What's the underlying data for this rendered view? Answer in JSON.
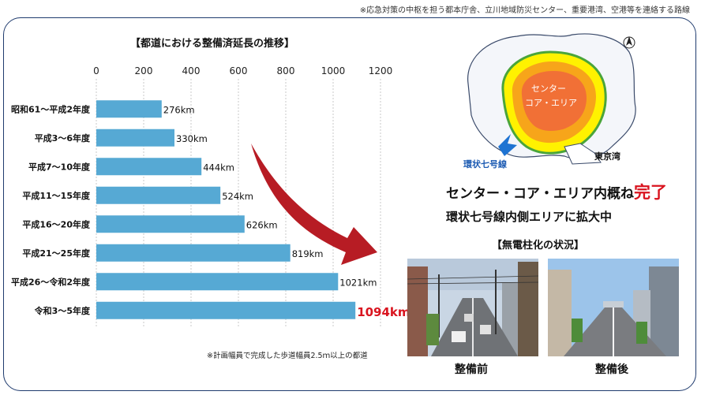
{
  "header": {
    "note": "※応急対策の中枢を担う都本庁舎、立川地域防災センター、重要港湾、空港等を連絡する路線"
  },
  "chart_data": {
    "type": "bar",
    "orientation": "horizontal",
    "title": "【都道における整備済延長の推移】",
    "categories": [
      "昭和61～平成2年度",
      "平成3～6年度",
      "平成7～10年度",
      "平成11～15年度",
      "平成16～20年度",
      "平成21～25年度",
      "平成26～令和2年度",
      "令和3～5年度"
    ],
    "values": [
      276,
      330,
      444,
      524,
      626,
      819,
      1021,
      1094
    ],
    "value_labels": [
      "276km",
      "330km",
      "444km",
      "524km",
      "626km",
      "819km",
      "1021km",
      "1094km"
    ],
    "highlight_index": 7,
    "xlim": [
      0,
      1200
    ],
    "xticks": [
      0,
      200,
      400,
      600,
      800,
      1000,
      1200
    ],
    "grid": true,
    "bar_color": "#56a9d4",
    "highlight_color": "#d9141f",
    "note": "※計画幅員で完成した歩道幅員2.5ｍ以上の都道"
  },
  "map": {
    "center_label_1": "センター",
    "center_label_2": "コア・エリア",
    "bay_label": "東京湾",
    "ring_label": "環状七号線",
    "north_icon": "north-arrow-icon"
  },
  "status": {
    "line1_prefix": "センター・コア・エリア内概ね",
    "line1_highlight": "完了",
    "line2": "環状七号線内側エリアに拡大中"
  },
  "photos": {
    "title": "【無電柱化の状況】",
    "before_label": "整備前",
    "after_label": "整備後"
  },
  "colors": {
    "frame": "#1f3b6e",
    "accent_red": "#d9141f",
    "arrow": "#b31018"
  }
}
